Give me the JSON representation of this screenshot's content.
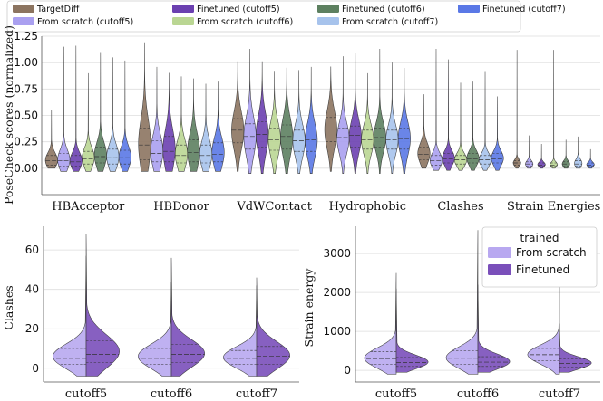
{
  "colors": {
    "TargetDiff": "#8c7460",
    "scratch5": "#aaa0f0",
    "fine5": "#6b40b0",
    "scratch6": "#bad693",
    "fine6": "#5d8060",
    "scratch7": "#a7c3ec",
    "fine7": "#5a78e6",
    "trainedScratch": "#b8a8f0",
    "trainedFine": "#7a4fba"
  },
  "chart_data": [
    {
      "type": "violin",
      "title": "",
      "ylabel": "PoseCheck scores (normalized)",
      "xlabel": "",
      "ylim": [
        -0.25,
        1.25
      ],
      "yticks": [
        "0.00",
        "0.25",
        "0.50",
        "0.75",
        "1.00",
        "1.25"
      ],
      "legend_position": "top",
      "series": [
        {
          "key": "TargetDiff",
          "name": "TargetDiff"
        },
        {
          "key": "scratch5",
          "name": "From scratch (cutoff5)"
        },
        {
          "key": "fine5",
          "name": "Finetuned (cutoff5)"
        },
        {
          "key": "scratch6",
          "name": "From scratch (cutoff6)"
        },
        {
          "key": "fine6",
          "name": "Finetuned (cutoff6)"
        },
        {
          "key": "scratch7",
          "name": "From scratch (cutoff7)"
        },
        {
          "key": "fine7",
          "name": "Finetuned (cutoff7)"
        }
      ],
      "categories": [
        {
          "name": "HBAcceptor",
          "stats": [
            {
              "min": 0.0,
              "q1": 0.03,
              "median": 0.07,
              "q3": 0.12,
              "max": 0.55
            },
            {
              "min": -0.03,
              "q1": 0.02,
              "median": 0.07,
              "q3": 0.14,
              "max": 1.15
            },
            {
              "min": -0.03,
              "q1": 0.02,
              "median": 0.06,
              "q3": 0.12,
              "max": 1.16
            },
            {
              "min": -0.03,
              "q1": 0.04,
              "median": 0.09,
              "q3": 0.16,
              "max": 0.9
            },
            {
              "min": -0.03,
              "q1": 0.05,
              "median": 0.11,
              "q3": 0.2,
              "max": 1.1
            },
            {
              "min": -0.03,
              "q1": 0.04,
              "median": 0.1,
              "q3": 0.18,
              "max": 1.05
            },
            {
              "min": -0.03,
              "q1": 0.04,
              "median": 0.1,
              "q3": 0.17,
              "max": 1.02
            }
          ]
        },
        {
          "name": "HBDonor",
          "stats": [
            {
              "min": -0.03,
              "q1": 0.08,
              "median": 0.22,
              "q3": 0.38,
              "max": 1.19
            },
            {
              "min": -0.03,
              "q1": 0.06,
              "median": 0.14,
              "q3": 0.26,
              "max": 0.96
            },
            {
              "min": -0.03,
              "q1": 0.06,
              "median": 0.16,
              "q3": 0.3,
              "max": 0.9
            },
            {
              "min": -0.03,
              "q1": 0.05,
              "median": 0.12,
              "q3": 0.22,
              "max": 0.87
            },
            {
              "min": -0.03,
              "q1": 0.06,
              "median": 0.15,
              "q3": 0.27,
              "max": 0.85
            },
            {
              "min": -0.03,
              "q1": 0.05,
              "median": 0.12,
              "q3": 0.22,
              "max": 0.8
            },
            {
              "min": -0.03,
              "q1": 0.06,
              "median": 0.13,
              "q3": 0.24,
              "max": 0.82
            }
          ]
        },
        {
          "name": "VdWContact",
          "stats": [
            {
              "min": -0.03,
              "q1": 0.24,
              "median": 0.36,
              "q3": 0.47,
              "max": 1.01
            },
            {
              "min": -0.05,
              "q1": 0.18,
              "median": 0.3,
              "q3": 0.42,
              "max": 1.13
            },
            {
              "min": -0.05,
              "q1": 0.2,
              "median": 0.32,
              "q3": 0.44,
              "max": 1.01
            },
            {
              "min": -0.05,
              "q1": 0.17,
              "median": 0.27,
              "q3": 0.38,
              "max": 0.92
            },
            {
              "min": -0.05,
              "q1": 0.18,
              "median": 0.3,
              "q3": 0.41,
              "max": 0.95
            },
            {
              "min": -0.05,
              "q1": 0.16,
              "median": 0.26,
              "q3": 0.36,
              "max": 0.93
            },
            {
              "min": -0.05,
              "q1": 0.16,
              "median": 0.27,
              "q3": 0.37,
              "max": 0.96
            }
          ]
        },
        {
          "name": "Hydrophobic",
          "stats": [
            {
              "min": -0.03,
              "q1": 0.25,
              "median": 0.37,
              "q3": 0.48,
              "max": 0.96
            },
            {
              "min": -0.05,
              "q1": 0.19,
              "median": 0.29,
              "q3": 0.38,
              "max": 1.06
            },
            {
              "min": -0.05,
              "q1": 0.2,
              "median": 0.31,
              "q3": 0.4,
              "max": 1.09
            },
            {
              "min": -0.05,
              "q1": 0.18,
              "median": 0.27,
              "q3": 0.36,
              "max": 0.9
            },
            {
              "min": -0.05,
              "q1": 0.2,
              "median": 0.29,
              "q3": 0.38,
              "max": 1.13
            },
            {
              "min": -0.05,
              "q1": 0.18,
              "median": 0.27,
              "q3": 0.36,
              "max": 1.0
            },
            {
              "min": -0.05,
              "q1": 0.18,
              "median": 0.28,
              "q3": 0.38,
              "max": 0.95
            }
          ]
        },
        {
          "name": "Clashes",
          "stats": [
            {
              "min": 0.0,
              "q1": 0.08,
              "median": 0.13,
              "q3": 0.2,
              "max": 0.7
            },
            {
              "min": -0.02,
              "q1": 0.03,
              "median": 0.07,
              "q3": 0.12,
              "max": 1.13
            },
            {
              "min": -0.02,
              "q1": 0.05,
              "median": 0.09,
              "q3": 0.14,
              "max": 1.03
            },
            {
              "min": -0.02,
              "q1": 0.04,
              "median": 0.08,
              "q3": 0.12,
              "max": 0.81
            },
            {
              "min": -0.02,
              "q1": 0.05,
              "median": 0.09,
              "q3": 0.14,
              "max": 0.82
            },
            {
              "min": -0.02,
              "q1": 0.04,
              "median": 0.08,
              "q3": 0.12,
              "max": 0.92
            },
            {
              "min": -0.02,
              "q1": 0.05,
              "median": 0.09,
              "q3": 0.14,
              "max": 0.68
            }
          ]
        },
        {
          "name": "Strain Energies",
          "stats": [
            {
              "min": 0.0,
              "q1": 0.03,
              "median": 0.05,
              "q3": 0.07,
              "max": 1.12
            },
            {
              "min": 0.0,
              "q1": 0.02,
              "median": 0.04,
              "q3": 0.06,
              "max": 0.31
            },
            {
              "min": 0.0,
              "q1": 0.02,
              "median": 0.03,
              "q3": 0.05,
              "max": 0.23
            },
            {
              "min": 0.0,
              "q1": 0.02,
              "median": 0.03,
              "q3": 0.05,
              "max": 1.12
            },
            {
              "min": 0.0,
              "q1": 0.02,
              "median": 0.04,
              "q3": 0.06,
              "max": 0.27
            },
            {
              "min": 0.0,
              "q1": 0.02,
              "median": 0.04,
              "q3": 0.07,
              "max": 0.3
            },
            {
              "min": 0.0,
              "q1": 0.02,
              "median": 0.03,
              "q3": 0.05,
              "max": 0.18
            }
          ]
        }
      ]
    },
    {
      "type": "split-violin",
      "title": "",
      "ylabel": "Clashes",
      "xlabel": "",
      "ylim": [
        -7,
        72
      ],
      "yticks": [
        "0",
        "20",
        "40",
        "60"
      ],
      "categories": [
        "cutoff5",
        "cutoff6",
        "cutoff7"
      ],
      "series": [
        {
          "key": "trainedScratch",
          "name": "From scratch"
        },
        {
          "key": "trainedFine",
          "name": "Finetuned"
        }
      ],
      "stats": [
        [
          {
            "min": -4,
            "q1": 2,
            "median": 5,
            "q3": 10,
            "max": 57
          },
          {
            "min": -4,
            "q1": 3,
            "median": 7,
            "q3": 14,
            "max": 68
          }
        ],
        [
          {
            "min": -4,
            "q1": 2,
            "median": 5,
            "q3": 10,
            "max": 44
          },
          {
            "min": -4,
            "q1": 3,
            "median": 7,
            "q3": 12,
            "max": 56
          }
        ],
        [
          {
            "min": -4,
            "q1": 2,
            "median": 5,
            "q3": 9,
            "max": 42
          },
          {
            "min": -4,
            "q1": 2,
            "median": 6,
            "q3": 11,
            "max": 46
          }
        ]
      ]
    },
    {
      "type": "split-violin",
      "title": "",
      "ylabel": "Strain energy",
      "xlabel": "",
      "ylim": [
        -300,
        3700
      ],
      "yticks": [
        "0",
        "1000",
        "2000",
        "3000"
      ],
      "categories": [
        "cutoff5",
        "cutoff6",
        "cutoff7"
      ],
      "legend_title": "trained",
      "legend_position": "top-right",
      "series": [
        {
          "key": "trainedScratch",
          "name": "From scratch"
        },
        {
          "key": "trainedFine",
          "name": "Finetuned"
        }
      ],
      "stats": [
        [
          {
            "min": -100,
            "q1": 150,
            "median": 300,
            "q3": 480,
            "max": 2500
          },
          {
            "min": -50,
            "q1": 100,
            "median": 200,
            "q3": 330,
            "max": 2100
          }
        ],
        [
          {
            "min": -100,
            "q1": 150,
            "median": 310,
            "q3": 500,
            "max": 3600
          },
          {
            "min": -50,
            "q1": 100,
            "median": 210,
            "q3": 350,
            "max": 2200
          }
        ],
        [
          {
            "min": -100,
            "q1": 250,
            "median": 400,
            "q3": 560,
            "max": 2300
          },
          {
            "min": -50,
            "q1": 90,
            "median": 180,
            "q3": 290,
            "max": 1200
          }
        ]
      ]
    }
  ]
}
